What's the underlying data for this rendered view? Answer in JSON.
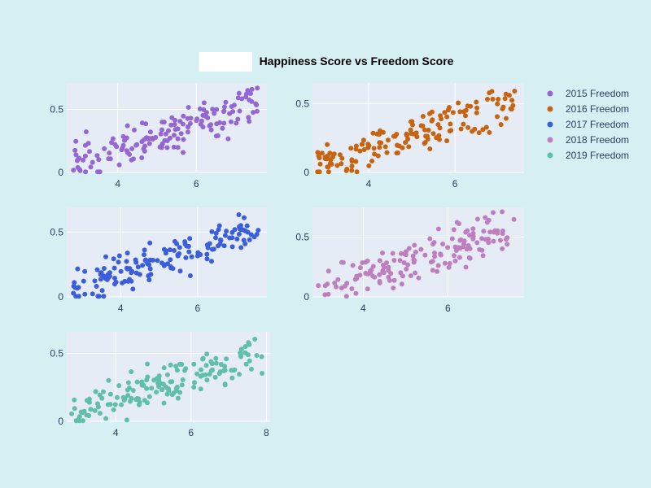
{
  "chart_data": {
    "type": "scatter",
    "title": "Happiness Score vs Freedom Score",
    "legend": {
      "placement": "right",
      "entries": [
        "2015 Freedom",
        "2016 Freedom",
        "2017 Freedom",
        "2018 Freedom",
        "2019 Freedom"
      ]
    },
    "series": [
      {
        "name": "2015 Freedom",
        "color": "#9467d3",
        "xlim": [
          2.7,
          7.8
        ],
        "ylim": [
          0,
          0.71
        ],
        "xticks": [
          "4",
          "6"
        ],
        "yticks": [
          "0",
          "0.5"
        ],
        "seed": 11
      },
      {
        "name": "2016 Freedom",
        "color": "#c8640f",
        "xlim": [
          2.7,
          7.6
        ],
        "ylim": [
          0,
          0.65
        ],
        "xticks": [
          "4",
          "6"
        ],
        "yticks": [
          "0",
          "0.5"
        ],
        "seed": 22
      },
      {
        "name": "2017 Freedom",
        "color": "#3b5fdc",
        "xlim": [
          2.6,
          7.8
        ],
        "ylim": [
          0,
          0.69
        ],
        "xticks": [
          "4",
          "6"
        ],
        "yticks": [
          "0",
          "0.5"
        ],
        "seed": 33
      },
      {
        "name": "2018 Freedom",
        "color": "#bf7fbf",
        "xlim": [
          2.8,
          7.8
        ],
        "ylim": [
          0,
          0.75
        ],
        "xticks": [
          "4",
          "6"
        ],
        "yticks": [
          "0",
          "0.5"
        ],
        "seed": 44
      },
      {
        "name": "2019 Freedom",
        "color": "#5fbfa8",
        "xlim": [
          2.7,
          8.1
        ],
        "ylim": [
          0,
          0.66
        ],
        "xticks": [
          "4",
          "6",
          "8"
        ],
        "yticks": [
          "0",
          "0.5"
        ],
        "seed": 55
      }
    ],
    "n_points_per_series": 155,
    "grid": true
  }
}
